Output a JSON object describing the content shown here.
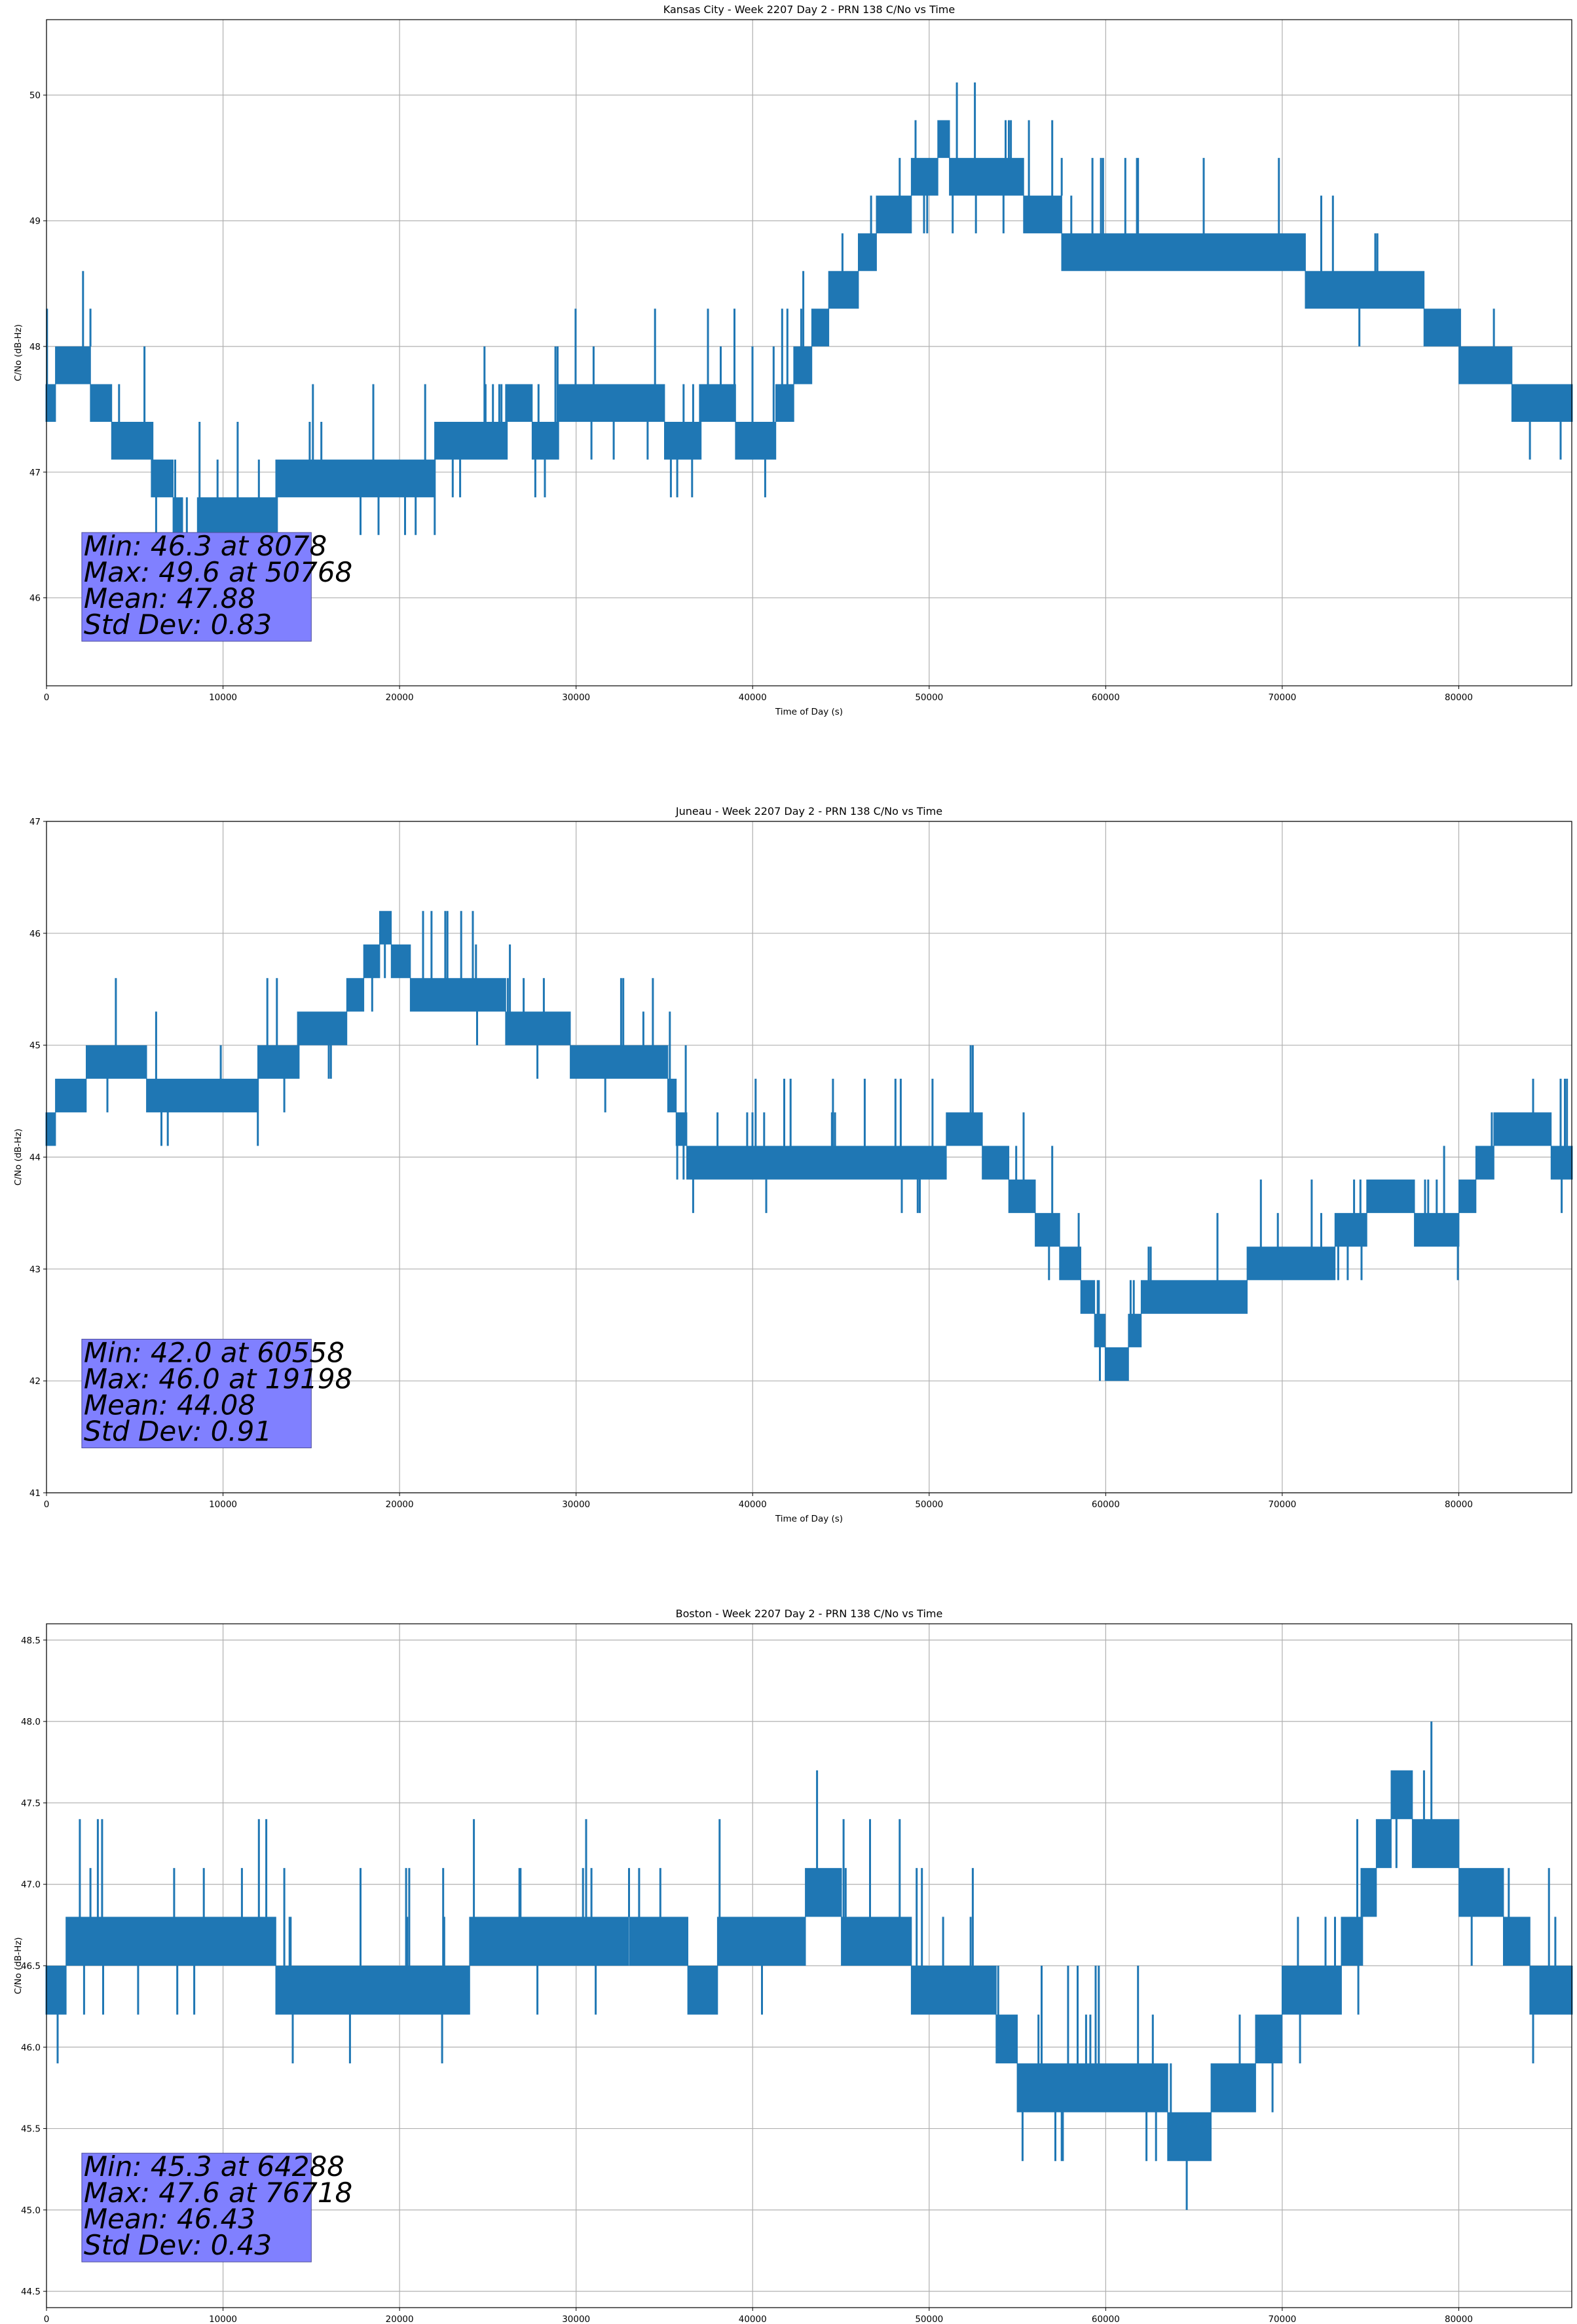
{
  "chart_data": [
    {
      "type": "line",
      "title": "Kansas City - Week 2207 Day 2 - PRN 138 C/No vs Time",
      "xlabel": "Time of Day (s)",
      "ylabel": "C/No (dB-Hz)",
      "xlim": [
        0,
        86400
      ],
      "ylim": [
        45.3,
        50.6
      ],
      "xticks": [
        0,
        10000,
        20000,
        30000,
        40000,
        50000,
        60000,
        70000,
        80000
      ],
      "yticks": [
        46,
        47,
        48,
        49,
        50
      ],
      "ytick_decimals": 0,
      "grid": true,
      "color": "#1f77b4",
      "series": [
        {
          "x": [
            0,
            1500,
            3000,
            4000,
            6000,
            7000,
            8078,
            9000,
            11000,
            12000,
            13000,
            15000,
            17000,
            20000,
            22000,
            25000,
            27000,
            28000,
            30000,
            32000,
            34000,
            36000,
            38000,
            40000,
            41000,
            42000,
            43000,
            44000,
            45000,
            46000,
            47000,
            48000,
            49000,
            50000,
            50768,
            52000,
            54000,
            56000,
            57000,
            58000,
            60000,
            62000,
            64000,
            66000,
            68000,
            70000,
            72000,
            74000,
            76000,
            78000,
            79000,
            80000,
            82000,
            84000,
            86400
          ],
          "y": [
            47.6,
            47.9,
            47.6,
            47.3,
            47.1,
            46.9,
            46.3,
            46.7,
            46.5,
            46.6,
            46.8,
            46.8,
            46.8,
            46.9,
            47.1,
            47.3,
            47.5,
            47.3,
            47.5,
            47.4,
            47.5,
            47.3,
            47.5,
            47.3,
            47.3,
            47.6,
            47.9,
            48.2,
            48.5,
            48.6,
            48.9,
            49.0,
            49.2,
            49.3,
            49.6,
            49.3,
            49.4,
            49.1,
            49.1,
            48.7,
            48.8,
            48.8,
            48.6,
            48.7,
            48.8,
            48.8,
            48.5,
            48.4,
            48.3,
            48.3,
            48.2,
            48.0,
            47.9,
            47.5,
            47.4
          ]
        }
      ],
      "stats": [
        "Min: 46.3 at 8078",
        "Max: 49.6 at 50768",
        "Mean: 47.88",
        "Std Dev: 0.83"
      ]
    },
    {
      "type": "line",
      "title": "Juneau - Week 2207 Day 2 - PRN 138 C/No vs Time",
      "xlabel": "Time of Day (s)",
      "ylabel": "C/No (dB-Hz)",
      "xlim": [
        0,
        86400
      ],
      "ylim": [
        41,
        47
      ],
      "xticks": [
        0,
        10000,
        20000,
        30000,
        40000,
        50000,
        60000,
        70000,
        80000
      ],
      "yticks": [
        41,
        42,
        43,
        44,
        45,
        46,
        47
      ],
      "ytick_decimals": 0,
      "grid": true,
      "color": "#1f77b4",
      "series": [
        {
          "x": [
            0,
            1500,
            3000,
            5000,
            7000,
            9000,
            11000,
            13000,
            15000,
            17000,
            19198,
            21000,
            23000,
            25000,
            27000,
            29000,
            31000,
            33000,
            35000,
            36000,
            37000,
            39000,
            41000,
            43000,
            45000,
            47000,
            49000,
            51000,
            53000,
            55000,
            57000,
            59000,
            60558,
            62000,
            64000,
            66000,
            68000,
            70000,
            72000,
            74000,
            76000,
            78000,
            80000,
            82000,
            84000,
            86400
          ],
          "y": [
            44.3,
            44.6,
            44.8,
            44.8,
            44.5,
            44.5,
            44.6,
            44.8,
            45.1,
            45.3,
            46.0,
            45.5,
            45.5,
            45.5,
            45.1,
            45.1,
            44.8,
            44.8,
            44.8,
            44.2,
            43.8,
            43.8,
            44.1,
            44.0,
            44.0,
            43.9,
            43.8,
            44.1,
            44.1,
            43.7,
            43.3,
            42.8,
            42.0,
            42.6,
            42.8,
            42.7,
            42.9,
            43.1,
            43.1,
            43.3,
            43.8,
            43.4,
            43.5,
            44.1,
            44.3,
            43.9
          ]
        }
      ],
      "stats": [
        "Min: 42.0 at 60558",
        "Max: 46.0 at 19198",
        "Mean: 44.08",
        "Std Dev: 0.91"
      ]
    },
    {
      "type": "line",
      "title": "Boston - Week 2207 Day 2 - PRN 138 C/No vs Time",
      "xlabel": "Time of Day (s)",
      "ylabel": "C/No (dB-Hz)",
      "xlim": [
        0,
        86400
      ],
      "ylim": [
        44.4,
        48.6
      ],
      "xticks": [
        0,
        10000,
        20000,
        30000,
        40000,
        50000,
        60000,
        70000,
        80000
      ],
      "yticks": [
        44.5,
        45.0,
        45.5,
        46.0,
        46.5,
        47.0,
        47.5,
        48.0,
        48.5
      ],
      "ytick_decimals": 1,
      "grid": true,
      "color": "#1f77b4",
      "series": [
        {
          "x": [
            0,
            1500,
            3000,
            5000,
            7000,
            9000,
            11000,
            13000,
            15000,
            17000,
            19000,
            21000,
            23000,
            25000,
            27000,
            29000,
            31000,
            33000,
            35000,
            37000,
            39000,
            41000,
            43000,
            45000,
            47000,
            49000,
            51000,
            53000,
            55000,
            57000,
            59000,
            61000,
            63000,
            64288,
            66000,
            68000,
            70000,
            72000,
            74000,
            76718,
            78000,
            80000,
            82000,
            84000,
            86400
          ],
          "y": [
            46.2,
            46.6,
            46.5,
            46.6,
            46.5,
            46.6,
            46.5,
            46.5,
            46.2,
            46.2,
            46.2,
            46.2,
            46.4,
            46.6,
            46.6,
            46.8,
            46.7,
            46.8,
            46.7,
            46.4,
            46.6,
            46.5,
            46.8,
            46.8,
            46.6,
            46.5,
            46.4,
            46.4,
            45.9,
            45.8,
            45.8,
            45.8,
            45.8,
            45.3,
            45.6,
            45.8,
            46.2,
            46.3,
            46.6,
            47.6,
            47.2,
            47.1,
            46.9,
            46.5,
            46.4
          ]
        }
      ],
      "stats": [
        "Min: 45.3 at 64288",
        "Max: 47.6 at 76718",
        "Mean: 46.43",
        "Std Dev: 0.43"
      ]
    }
  ]
}
